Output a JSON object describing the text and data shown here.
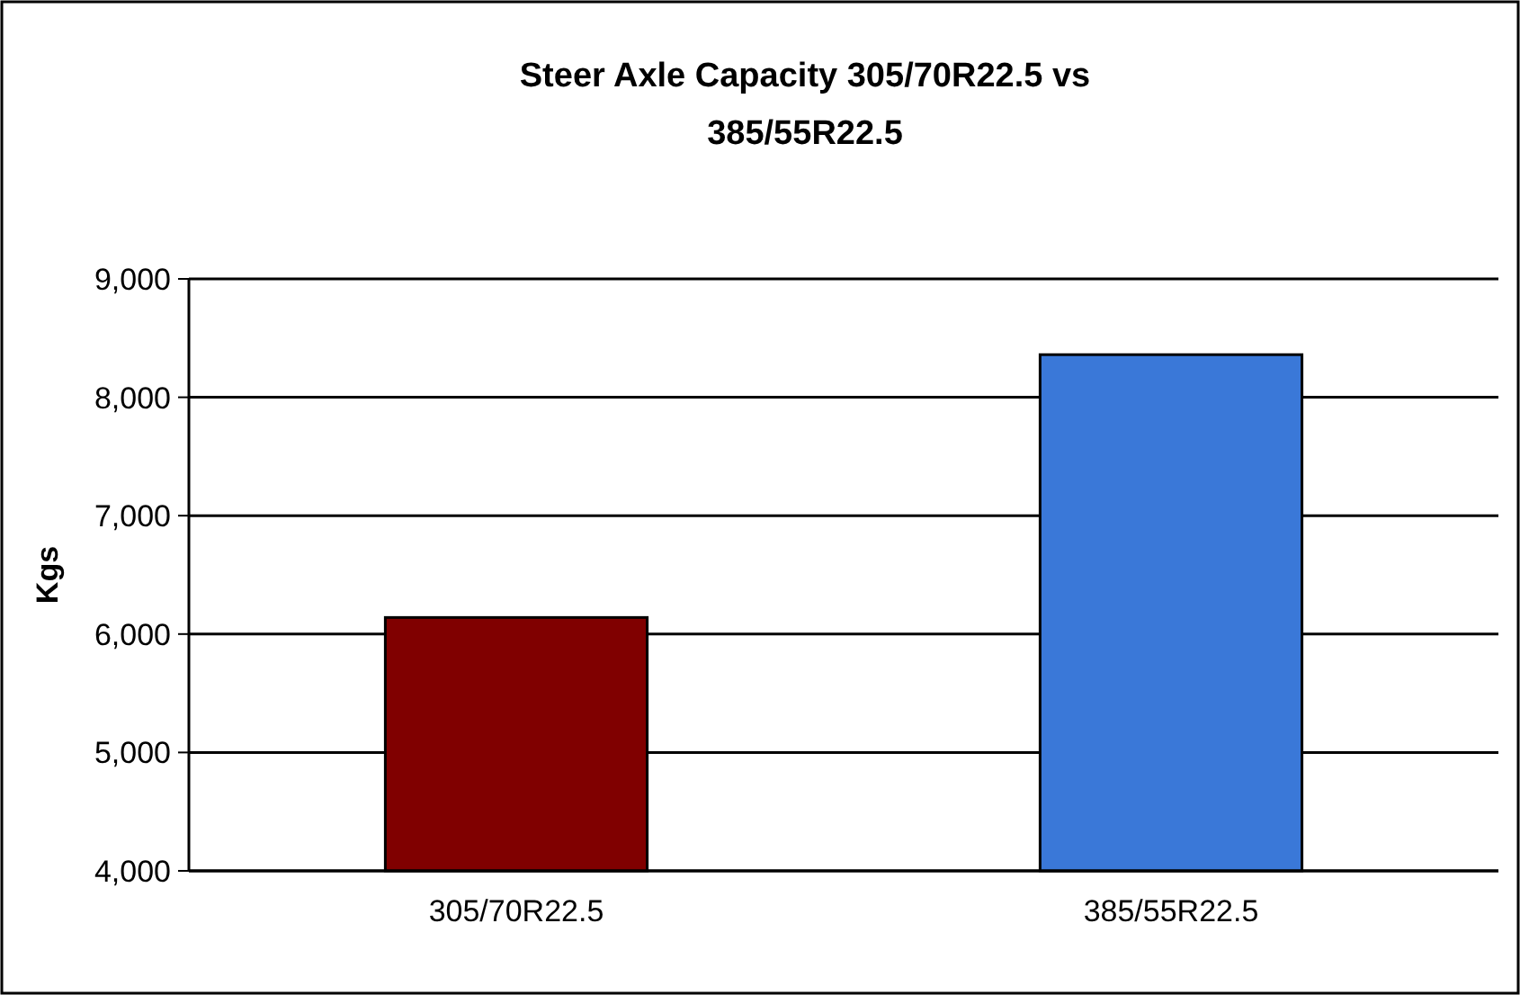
{
  "chart_data": {
    "type": "bar",
    "title": "Steer Axle Capacity 305/70R22.5 vs 385/55R22.5",
    "ylabel": "Kgs",
    "categories": [
      "305/70R22.5",
      "385/55R22.5"
    ],
    "values": [
      6140,
      8360
    ],
    "colors": [
      "#800000",
      "#3a78d8"
    ],
    "ylim": [
      4000,
      9000
    ],
    "yticks": [
      {
        "value": 4000,
        "label": "4,000"
      },
      {
        "value": 5000,
        "label": "5,000"
      },
      {
        "value": 6000,
        "label": "6,000"
      },
      {
        "value": 7000,
        "label": "7,000"
      },
      {
        "value": 8000,
        "label": "8,000"
      },
      {
        "value": 9000,
        "label": "9,000"
      }
    ],
    "grid": "y"
  }
}
